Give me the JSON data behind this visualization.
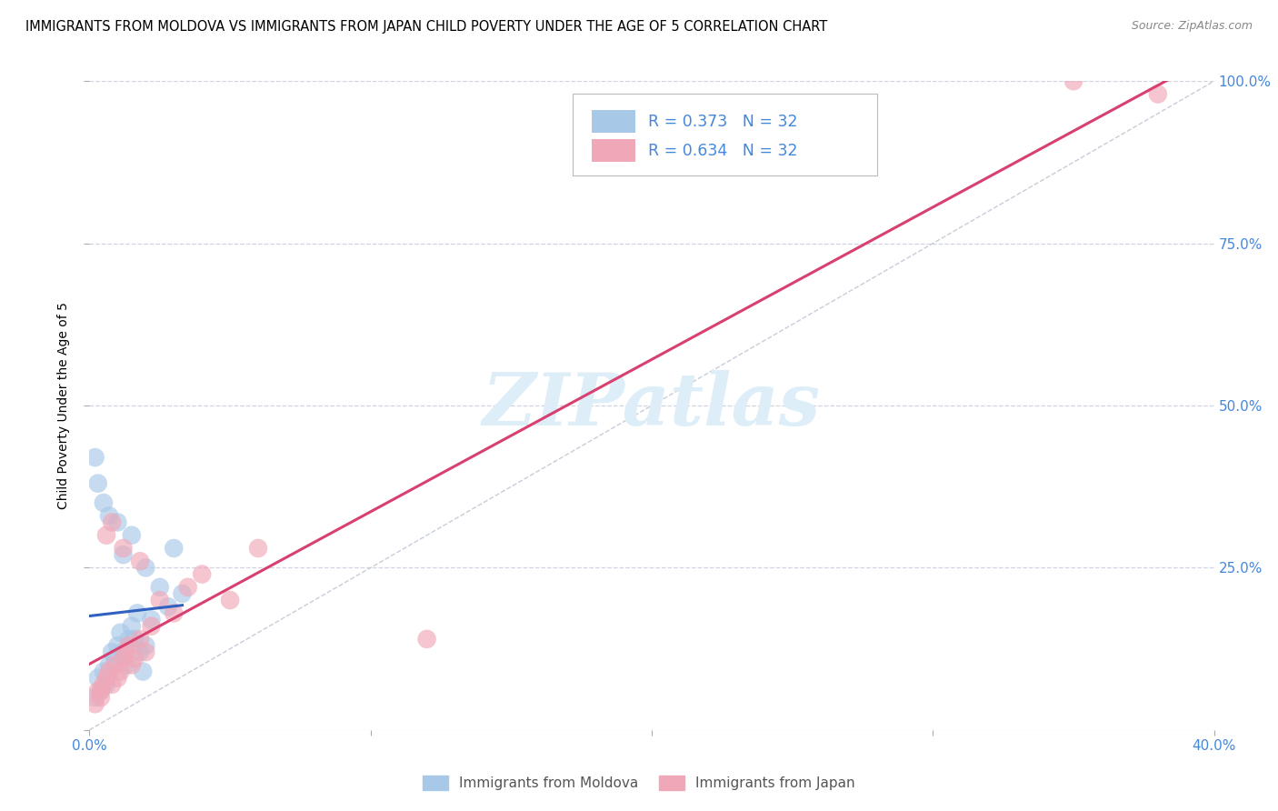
{
  "title": "IMMIGRANTS FROM MOLDOVA VS IMMIGRANTS FROM JAPAN CHILD POVERTY UNDER THE AGE OF 5 CORRELATION CHART",
  "source": "Source: ZipAtlas.com",
  "ylabel": "Child Poverty Under the Age of 5",
  "xlim": [
    0.0,
    0.4
  ],
  "ylim": [
    0.0,
    1.0
  ],
  "moldova_R": 0.373,
  "moldova_N": 32,
  "japan_R": 0.634,
  "japan_N": 32,
  "moldova_color": "#a8c8e8",
  "japan_color": "#f0a8b8",
  "moldova_line_color": "#3060c0",
  "japan_line_color": "#d84070",
  "diagonal_color": "#b8c0d0",
  "watermark_color": "#ddeef8",
  "background_color": "#ffffff",
  "grid_color": "#d0d4e0",
  "moldova_x": [
    0.002,
    0.003,
    0.004,
    0.005,
    0.006,
    0.007,
    0.008,
    0.009,
    0.01,
    0.011,
    0.012,
    0.013,
    0.014,
    0.015,
    0.016,
    0.017,
    0.018,
    0.019,
    0.02,
    0.022,
    0.025,
    0.028,
    0.03,
    0.033,
    0.002,
    0.003,
    0.005,
    0.007,
    0.01,
    0.015,
    0.012,
    0.02
  ],
  "moldova_y": [
    0.05,
    0.08,
    0.06,
    0.09,
    0.07,
    0.1,
    0.12,
    0.11,
    0.13,
    0.15,
    0.12,
    0.1,
    0.14,
    0.16,
    0.14,
    0.18,
    0.12,
    0.09,
    0.13,
    0.17,
    0.22,
    0.19,
    0.28,
    0.21,
    0.42,
    0.38,
    0.35,
    0.33,
    0.32,
    0.3,
    0.27,
    0.25
  ],
  "japan_x": [
    0.002,
    0.003,
    0.004,
    0.005,
    0.006,
    0.007,
    0.008,
    0.009,
    0.01,
    0.011,
    0.012,
    0.013,
    0.014,
    0.015,
    0.016,
    0.018,
    0.02,
    0.022,
    0.025,
    0.03,
    0.035,
    0.04,
    0.05,
    0.06,
    0.004,
    0.006,
    0.008,
    0.012,
    0.018,
    0.12,
    0.35,
    0.38
  ],
  "japan_y": [
    0.04,
    0.06,
    0.05,
    0.07,
    0.08,
    0.09,
    0.07,
    0.1,
    0.08,
    0.09,
    0.11,
    0.12,
    0.13,
    0.1,
    0.11,
    0.14,
    0.12,
    0.16,
    0.2,
    0.18,
    0.22,
    0.24,
    0.2,
    0.28,
    0.06,
    0.3,
    0.32,
    0.28,
    0.26,
    0.14,
    1.0,
    0.98
  ]
}
